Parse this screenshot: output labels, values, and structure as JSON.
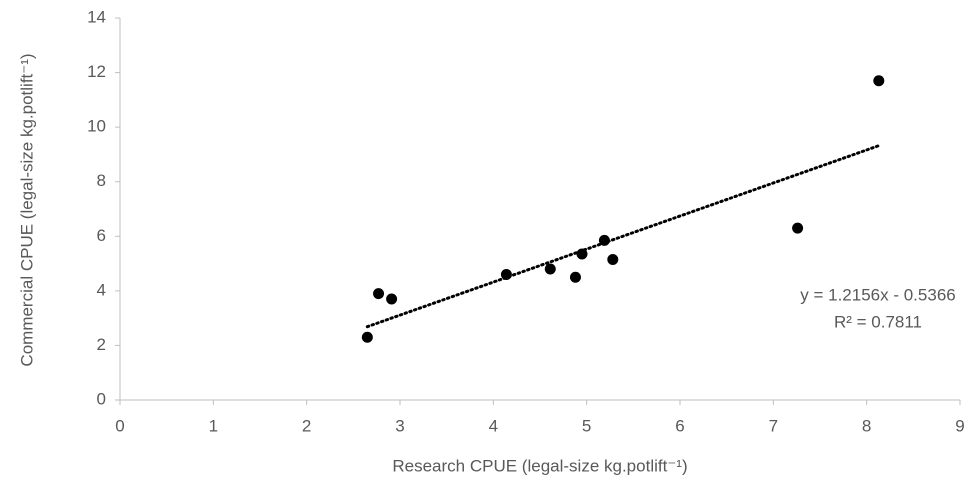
{
  "chart_data": {
    "type": "scatter",
    "x_label": "Research CPUE (legal-size kg.potlift⁻¹)",
    "y_label": "Commercial CPUE (legal-size kg.potlift⁻¹)",
    "x": [
      2.65,
      2.77,
      2.91,
      4.14,
      4.61,
      4.88,
      4.95,
      5.19,
      5.28,
      7.26,
      8.13
    ],
    "values": [
      2.3,
      3.9,
      3.7,
      4.6,
      4.8,
      4.5,
      5.35,
      5.85,
      5.15,
      6.3,
      11.7
    ],
    "color": "#000000",
    "xlim": [
      0,
      9
    ],
    "xticks": [
      0,
      1,
      2,
      3,
      4,
      5,
      6,
      7,
      8,
      9
    ],
    "ylim": [
      0,
      14
    ],
    "yticks": [
      0,
      2,
      4,
      6,
      8,
      10,
      12,
      14
    ],
    "grid": false,
    "trendline": {
      "equation": "y = 1.2156x - 0.5366",
      "r_squared": "R² = 0.7811"
    }
  }
}
